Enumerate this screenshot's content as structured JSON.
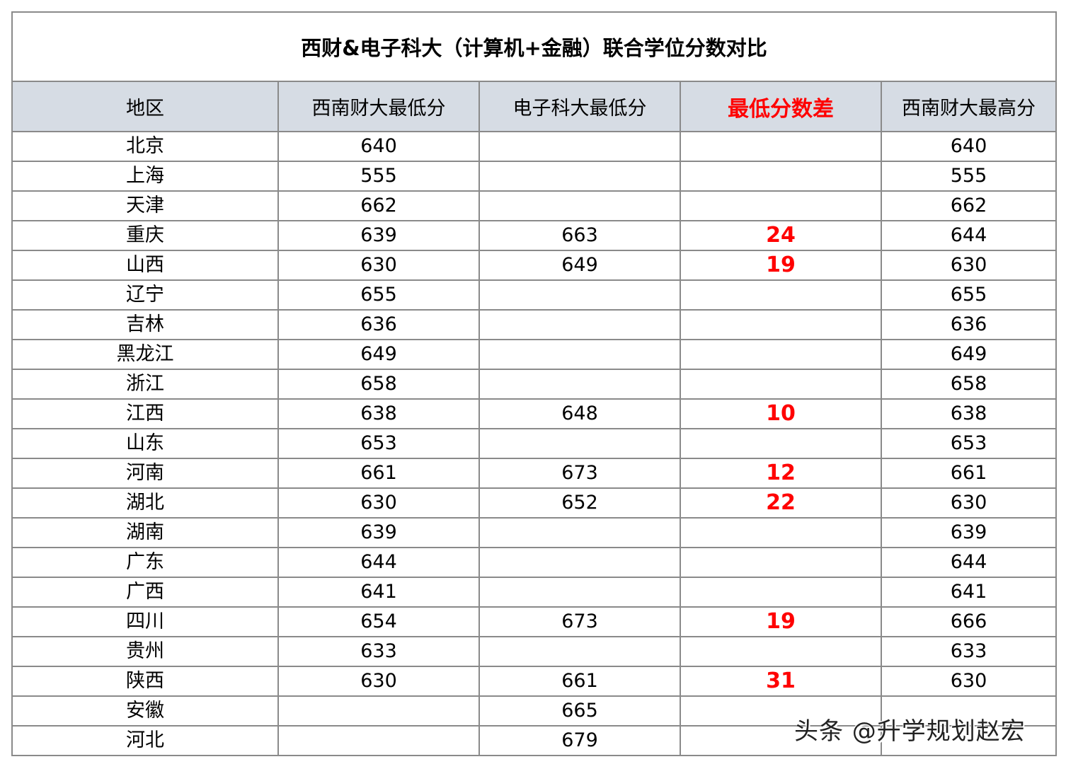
{
  "title": "西财&电子科大（计算机+金融）联合学位分数对比",
  "headers": [
    "地区",
    "西南财大最低分",
    "电子科大最低分",
    "最低分数差",
    "西南财大最高分"
  ],
  "highlight_color": "#ff0000",
  "header_bg": "#d6dce4",
  "rows": [
    [
      "北京",
      "640",
      "",
      "",
      "640"
    ],
    [
      "上海",
      "555",
      "",
      "",
      "555"
    ],
    [
      "天津",
      "662",
      "",
      "",
      "662"
    ],
    [
      "重庆",
      "639",
      "663",
      "24",
      "644"
    ],
    [
      "山西",
      "630",
      "649",
      "19",
      "630"
    ],
    [
      "辽宁",
      "655",
      "",
      "",
      "655"
    ],
    [
      "吉林",
      "636",
      "",
      "",
      "636"
    ],
    [
      "黑龙江",
      "649",
      "",
      "",
      "649"
    ],
    [
      "浙江",
      "658",
      "",
      "",
      "658"
    ],
    [
      "江西",
      "638",
      "648",
      "10",
      "638"
    ],
    [
      "山东",
      "653",
      "",
      "",
      "653"
    ],
    [
      "河南",
      "661",
      "673",
      "12",
      "661"
    ],
    [
      "湖北",
      "630",
      "652",
      "22",
      "630"
    ],
    [
      "湖南",
      "639",
      "",
      "",
      "639"
    ],
    [
      "广东",
      "644",
      "",
      "",
      "644"
    ],
    [
      "广西",
      "641",
      "",
      "",
      "641"
    ],
    [
      "四川",
      "654",
      "673",
      "19",
      "666"
    ],
    [
      "贵州",
      "633",
      "",
      "",
      "633"
    ],
    [
      "陕西",
      "630",
      "661",
      "31",
      "630"
    ],
    [
      "安徽",
      "",
      "665",
      "",
      ""
    ],
    [
      "河北",
      "",
      "679",
      "",
      ""
    ]
  ],
  "watermark": "头条 @升学规划赵宏"
}
